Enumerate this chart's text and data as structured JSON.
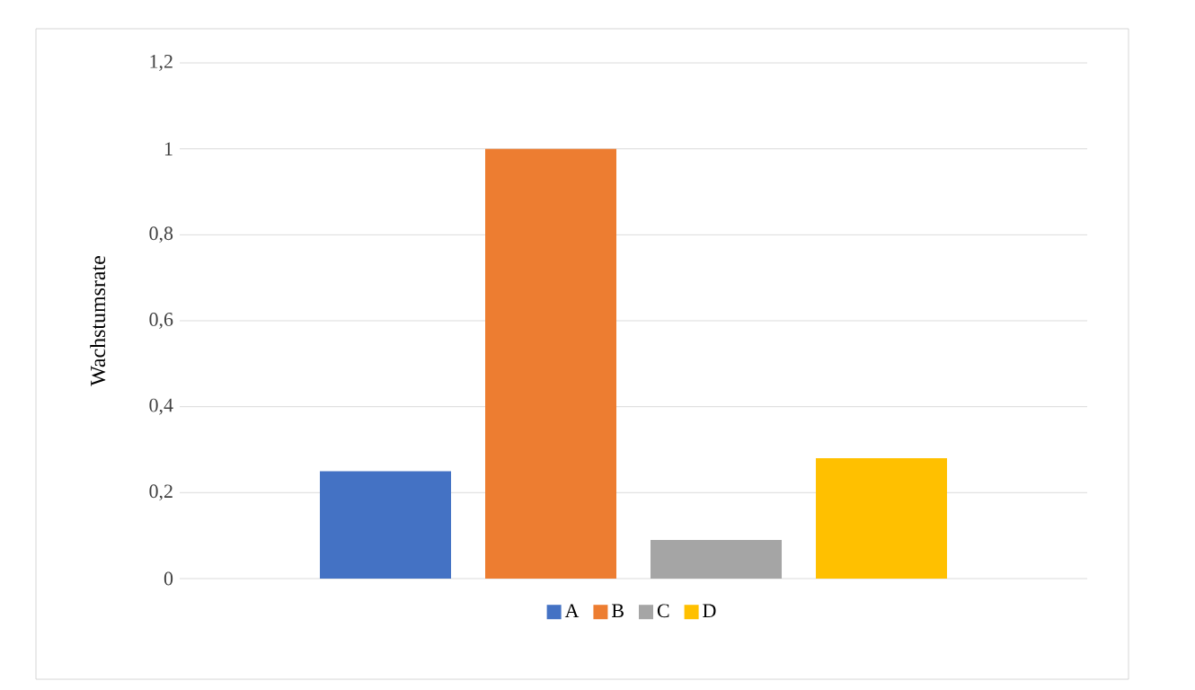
{
  "chart_data": {
    "type": "bar",
    "categories": [
      null
    ],
    "ylabel": "Wachstumsrate",
    "ylim": [
      0,
      1.2
    ],
    "yticks": [
      0,
      {
        "value": 0.2,
        "label": "0,2"
      },
      {
        "value": 0.4,
        "label": "0,4"
      },
      {
        "value": 0.6,
        "label": "0,6"
      },
      {
        "value": 0.8,
        "label": "0,8"
      },
      1,
      {
        "value": 1.2,
        "label": "1,2"
      }
    ],
    "grid": "y",
    "legend": "bottom",
    "series": [
      {
        "name": "A",
        "color": "#4472c4",
        "values": [
          0.25
        ]
      },
      {
        "name": "B",
        "color": "#ed7d31",
        "values": [
          1.0
        ]
      },
      {
        "name": "C",
        "color": "#a5a5a5",
        "values": [
          0.09
        ]
      },
      {
        "name": "D",
        "color": "#ffc000",
        "values": [
          0.28
        ]
      }
    ]
  }
}
